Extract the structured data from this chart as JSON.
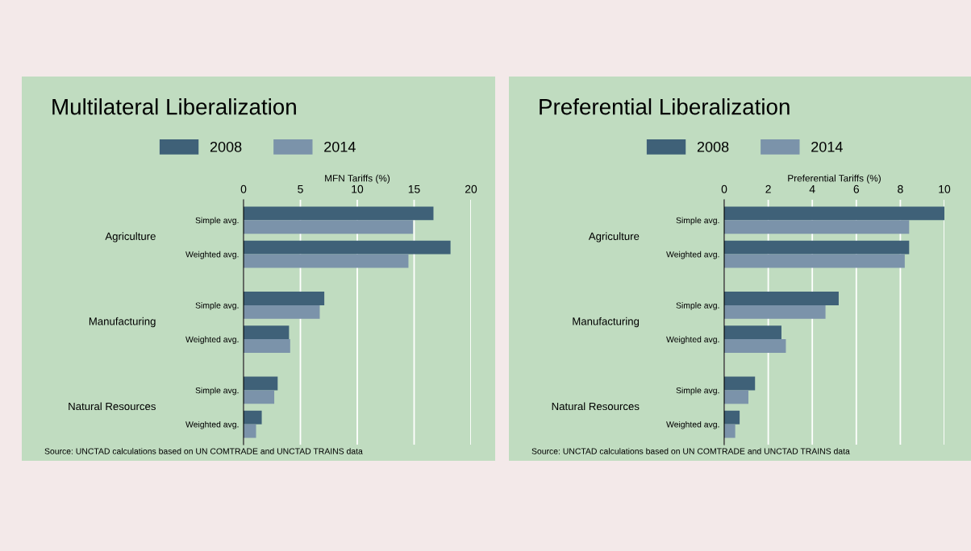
{
  "chart_data": [
    {
      "type": "bar",
      "orientation": "horizontal",
      "title": "Multilateral Liberalization",
      "xlabel": "MFN Tariffs (%)",
      "categories": [
        "Simple avg.",
        "Weighted avg.",
        "Simple avg.",
        "Weighted avg.",
        "Simple avg.",
        "Weighted avg."
      ],
      "series": [
        {
          "name": "2008",
          "color": "#3f6178",
          "values": [
            16.7,
            18.2,
            7.1,
            4.0,
            3.0,
            1.6
          ]
        },
        {
          "name": "2014",
          "color": "#7b93aa",
          "values": [
            14.9,
            14.5,
            6.7,
            4.1,
            2.7,
            1.1
          ]
        }
      ],
      "xlim": [
        0,
        20
      ],
      "xticks": [
        0,
        5,
        10,
        15,
        20
      ],
      "grid": "x",
      "legend": "top",
      "annotations": [
        "Agriculture",
        "Manufacturing",
        "Natural Resources",
        "Source: UNCTAD calculations based on UN COMTRADE and UNCTAD TRAINS data"
      ]
    },
    {
      "type": "bar",
      "orientation": "horizontal",
      "title": "Preferential Liberalization",
      "xlabel": "Preferential Tariffs (%)",
      "categories": [
        "Simple avg.",
        "Weighted avg.",
        "Simple avg.",
        "Weighted avg.",
        "Simple avg.",
        "Weighted avg."
      ],
      "series": [
        {
          "name": "2008",
          "color": "#3f6178",
          "values": [
            10.0,
            8.4,
            5.2,
            2.6,
            1.4,
            0.7
          ]
        },
        {
          "name": "2014",
          "color": "#7b93aa",
          "values": [
            8.4,
            8.2,
            4.6,
            2.8,
            1.1,
            0.5
          ]
        }
      ],
      "xlim": [
        0,
        10
      ],
      "xticks": [
        0,
        2,
        4,
        6,
        8,
        10
      ],
      "grid": "x",
      "legend": "top",
      "annotations": [
        "Agriculture",
        "Manufacturing",
        "Natural Resources",
        "Source: UNCTAD calculations based on UN COMTRADE and UNCTAD TRAINS data"
      ]
    }
  ]
}
